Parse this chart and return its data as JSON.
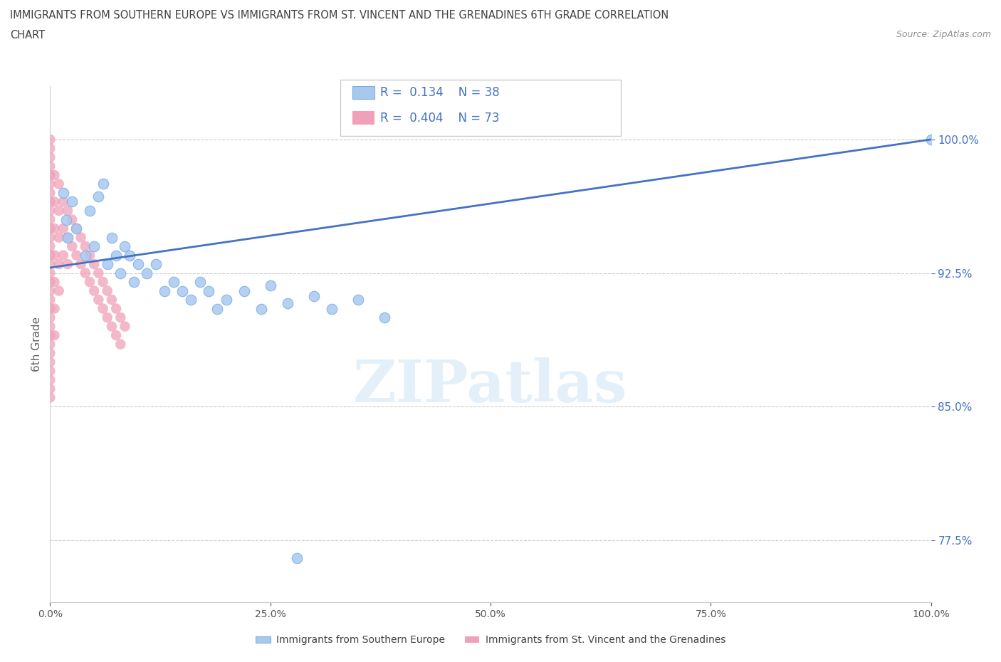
{
  "title_line1": "IMMIGRANTS FROM SOUTHERN EUROPE VS IMMIGRANTS FROM ST. VINCENT AND THE GRENADINES 6TH GRADE CORRELATION",
  "title_line2": "CHART",
  "source": "Source: ZipAtlas.com",
  "ylabel": "6th Grade",
  "y_ticks": [
    77.5,
    85.0,
    92.5,
    100.0
  ],
  "xlim": [
    0.0,
    100.0
  ],
  "ylim": [
    74.0,
    103.0
  ],
  "legend_label1": "Immigrants from Southern Europe",
  "legend_label2": "Immigrants from St. Vincent and the Grenadines",
  "R1": 0.134,
  "N1": 38,
  "R2": 0.404,
  "N2": 73,
  "color_blue": "#a8c8f0",
  "color_blue_edge": "#7ab0e0",
  "color_pink": "#f0a0b8",
  "color_trend": "#4472c4",
  "color_title": "#404040",
  "color_source": "#909090",
  "color_axis_label": "#606060",
  "color_tick_label": "#4472c4",
  "color_grid": "#cccccc",
  "watermark": "ZIPatlas",
  "blue_dots_x": [
    1.5,
    1.8,
    2.0,
    2.5,
    3.0,
    4.0,
    4.5,
    5.0,
    5.5,
    6.0,
    6.5,
    7.0,
    7.5,
    8.0,
    8.5,
    9.0,
    9.5,
    10.0,
    11.0,
    12.0,
    13.0,
    14.0,
    15.0,
    16.0,
    17.0,
    18.0,
    19.0,
    20.0,
    22.0,
    24.0,
    25.0,
    27.0,
    28.0,
    30.0,
    32.0,
    35.0,
    38.0,
    100.0
  ],
  "blue_dots_y": [
    97.0,
    95.5,
    94.5,
    96.5,
    95.0,
    93.5,
    96.0,
    94.0,
    96.8,
    97.5,
    93.0,
    94.5,
    93.5,
    92.5,
    94.0,
    93.5,
    92.0,
    93.0,
    92.5,
    93.0,
    91.5,
    92.0,
    91.5,
    91.0,
    92.0,
    91.5,
    90.5,
    91.0,
    91.5,
    90.5,
    91.8,
    90.8,
    76.5,
    91.2,
    90.5,
    91.0,
    90.0,
    100.0
  ],
  "pink_dots_x": [
    0.0,
    0.0,
    0.0,
    0.0,
    0.0,
    0.0,
    0.0,
    0.0,
    0.0,
    0.0,
    0.0,
    0.0,
    0.0,
    0.0,
    0.0,
    0.0,
    0.0,
    0.0,
    0.0,
    0.0,
    0.0,
    0.0,
    0.0,
    0.0,
    0.0,
    0.0,
    0.0,
    0.0,
    0.0,
    0.0,
    0.5,
    0.5,
    0.5,
    0.5,
    0.5,
    0.5,
    0.5,
    1.0,
    1.0,
    1.0,
    1.0,
    1.0,
    1.5,
    1.5,
    1.5,
    2.0,
    2.0,
    2.0,
    2.5,
    2.5,
    3.0,
    3.0,
    3.5,
    3.5,
    4.0,
    4.0,
    4.5,
    4.5,
    5.0,
    5.0,
    5.5,
    5.5,
    6.0,
    6.0,
    6.5,
    6.5,
    7.0,
    7.0,
    7.5,
    7.5,
    8.0,
    8.0,
    8.5
  ],
  "pink_dots_y": [
    100.0,
    99.5,
    99.0,
    98.5,
    98.0,
    97.5,
    97.0,
    96.5,
    96.0,
    95.5,
    95.0,
    94.5,
    94.0,
    93.5,
    93.0,
    92.5,
    92.0,
    91.5,
    91.0,
    90.5,
    90.0,
    89.5,
    89.0,
    88.5,
    88.0,
    87.5,
    87.0,
    86.5,
    86.0,
    85.5,
    98.0,
    96.5,
    95.0,
    93.5,
    92.0,
    90.5,
    89.0,
    97.5,
    96.0,
    94.5,
    93.0,
    91.5,
    96.5,
    95.0,
    93.5,
    96.0,
    94.5,
    93.0,
    95.5,
    94.0,
    95.0,
    93.5,
    94.5,
    93.0,
    94.0,
    92.5,
    93.5,
    92.0,
    93.0,
    91.5,
    92.5,
    91.0,
    92.0,
    90.5,
    91.5,
    90.0,
    91.0,
    89.5,
    90.5,
    89.0,
    90.0,
    88.5,
    89.5
  ],
  "trend_x": [
    0.0,
    100.0
  ],
  "trend_y": [
    92.8,
    100.0
  ]
}
